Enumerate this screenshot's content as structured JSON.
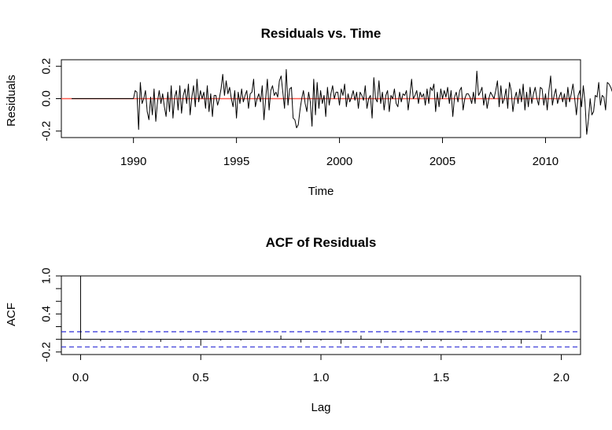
{
  "chart_data": [
    {
      "type": "line",
      "title": "Residuals vs. Time",
      "xlabel": "Time",
      "ylabel": "Residuals",
      "xlim": [
        1986.5,
        2011.7
      ],
      "ylim": [
        -0.24,
        0.24
      ],
      "x_ticks": [
        1990,
        1995,
        2000,
        2005,
        2010
      ],
      "x_tick_labels": [
        "1990",
        "1995",
        "2000",
        "2005",
        "2010"
      ],
      "y_ticks": [
        -0.2,
        0.0,
        0.2
      ],
      "y_tick_labels": [
        "-0.2",
        "0.0",
        "0.2"
      ],
      "reference_line": {
        "y": 0.0,
        "color": "#ff5a4e"
      },
      "series_color": "#000000",
      "series": [
        {
          "zero_start": 1987.0,
          "start": 1990.0,
          "step": 0.0833333,
          "values": [
            0.0,
            0.05,
            0.04,
            -0.19,
            0.1,
            -0.03,
            0.0,
            0.05,
            -0.08,
            -0.13,
            0.01,
            -0.1,
            0.06,
            -0.14,
            -0.02,
            0.05,
            -0.03,
            0.03,
            -0.05,
            -0.11,
            0.04,
            -0.08,
            0.08,
            -0.12,
            0.01,
            0.05,
            -0.07,
            0.08,
            -0.09,
            0.02,
            0.06,
            -0.03,
            0.09,
            -0.1,
            0.01,
            0.08,
            -0.05,
            0.12,
            -0.02,
            0.05,
            0.0,
            0.04,
            -0.06,
            0.08,
            -0.08,
            0.03,
            -0.11,
            0.02,
            0.02,
            -0.04,
            0.0,
            0.06,
            0.15,
            0.02,
            0.11,
            0.03,
            0.07,
            0.0,
            -0.05,
            0.05,
            -0.12,
            0.04,
            -0.03,
            0.06,
            -0.02,
            0.02,
            0.05,
            -0.06,
            0.03,
            0.04,
            0.12,
            -0.05,
            0.0,
            0.03,
            -0.02,
            0.08,
            -0.13,
            0.0,
            0.12,
            -0.07,
            0.05,
            0.08,
            0.02,
            0.04,
            0.01,
            0.11,
            0.14,
            0.04,
            -0.06,
            0.18,
            -0.04,
            0.06,
            0.07,
            -0.12,
            -0.13,
            -0.18,
            -0.16,
            -0.07,
            0.0,
            0.05,
            -0.03,
            -0.08,
            0.04,
            -0.02,
            -0.17,
            0.12,
            -0.1,
            0.1,
            -0.06,
            0.05,
            -0.03,
            0.02,
            -0.11,
            0.07,
            -0.04,
            0.03,
            0.08,
            0.0,
            0.04,
            0.04,
            -0.04,
            0.06,
            0.02,
            0.09,
            -0.05,
            0.03,
            -0.02,
            0.01,
            0.05,
            -0.01,
            0.04,
            -0.06,
            0.04,
            0.02,
            -0.01,
            0.08,
            -0.06,
            0.0,
            0.02,
            -0.12,
            0.13,
            0.0,
            -0.02,
            0.11,
            -0.03,
            0.04,
            -0.07,
            0.02,
            0.05,
            -0.08,
            0.02,
            0.0,
            0.06,
            -0.03,
            -0.05,
            0.04,
            -0.02,
            0.03,
            0.02,
            0.05,
            -0.07,
            0.02,
            0.12,
            0.0,
            0.02,
            0.05,
            -0.03,
            0.04,
            0.01,
            0.03,
            -0.04,
            0.06,
            -0.03,
            0.07,
            0.05,
            0.09,
            -0.08,
            0.04,
            -0.05,
            0.06,
            0.0,
            0.05,
            0.01,
            0.07,
            -0.03,
            0.05,
            -0.11,
            0.01,
            0.04,
            -0.02,
            0.05,
            0.07,
            -0.07,
            0.0,
            0.03,
            0.03,
            0.01,
            -0.03,
            0.04,
            -0.03,
            0.17,
            0.02,
            0.04,
            0.07,
            -0.04,
            0.03,
            -0.06,
            0.0,
            0.04,
            0.02,
            0.0,
            0.05,
            0.11,
            -0.05,
            0.08,
            -0.03,
            0.0,
            0.06,
            -0.06,
            0.1,
            0.05,
            -0.08,
            0.0,
            0.04,
            -0.03,
            0.06,
            -0.02,
            0.09,
            -0.07,
            0.04,
            -0.05,
            0.07,
            -0.03,
            0.03,
            0.07,
            0.0,
            -0.04,
            0.07,
            0.06,
            -0.04,
            0.03,
            -0.07,
            0.05,
            0.14,
            -0.04,
            0.02,
            0.06,
            -0.03,
            0.01,
            0.04,
            -0.02,
            0.03,
            -0.05,
            0.07,
            -0.02,
            0.03,
            0.09,
            0.0,
            -0.1,
            0.02,
            0.05,
            -0.05,
            0.08,
            -0.02,
            -0.22,
            -0.13,
            0.0,
            -0.1,
            -0.08,
            0.02,
            0.01,
            0.1,
            -0.04,
            0.02,
            0.01,
            -0.07,
            0.1,
            0.09,
            0.07,
            0.04
          ]
        }
      ]
    },
    {
      "type": "bar",
      "title": "ACF of Residuals",
      "xlabel": "Lag",
      "ylabel": "ACF",
      "xlim": [
        -0.08,
        2.08
      ],
      "ylim": [
        -0.2,
        1.0
      ],
      "x_ticks": [
        0.0,
        0.5,
        1.0,
        1.5,
        2.0
      ],
      "x_tick_labels": [
        "0.0",
        "0.5",
        "1.0",
        "1.5",
        "2.0"
      ],
      "y_ticks": [
        -0.2,
        0.4,
        1.0
      ],
      "y_tick_labels": [
        "-0.2",
        "0.4",
        "1.0"
      ],
      "y_minor_ticks": [
        0.0,
        0.2,
        0.6,
        0.8
      ],
      "confidence_bounds": [
        0.12,
        -0.12
      ],
      "confidence_color": "#2b2bd6",
      "lag_step": 0.0833333,
      "lags": [
        0.0,
        0.0833,
        0.1667,
        0.25,
        0.3333,
        0.4167,
        0.5,
        0.5833,
        0.6667,
        0.75,
        0.8333,
        0.9167,
        1.0,
        1.0833,
        1.1667,
        1.25,
        1.3333,
        1.4167,
        1.5,
        1.5833,
        1.6667,
        1.75,
        1.8333,
        1.9167
      ],
      "values": [
        1.0,
        -0.03,
        -0.02,
        0.01,
        -0.04,
        -0.02,
        -0.1,
        -0.02,
        -0.02,
        0.0,
        0.06,
        -0.05,
        -0.02,
        -0.07,
        0.06,
        -0.06,
        -0.02,
        -0.03,
        -0.03,
        -0.02,
        -0.01,
        -0.02,
        -0.07,
        0.08
      ]
    }
  ]
}
